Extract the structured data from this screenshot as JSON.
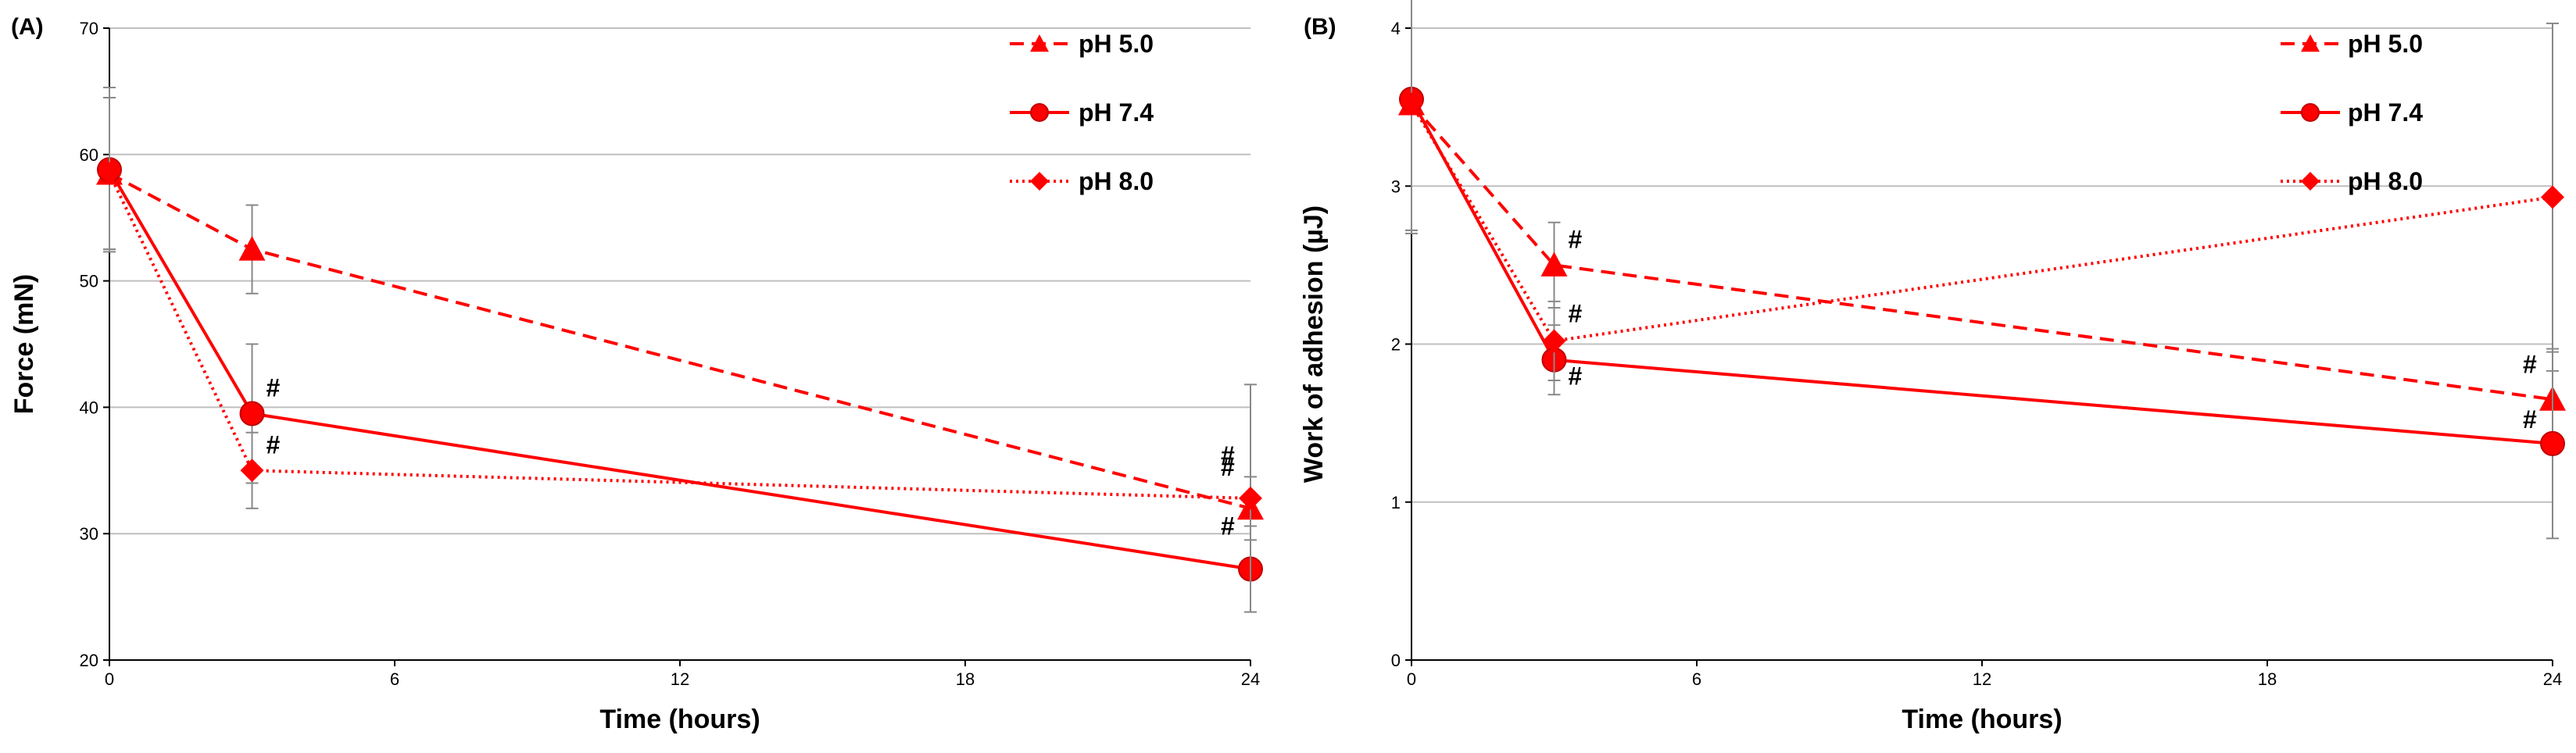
{
  "colors": {
    "series": "#ff0000",
    "grid": "#bfbfbf",
    "axis": "#000000",
    "errorbar": "#888888"
  },
  "chart_data": [
    {
      "type": "line",
      "panel_label": "(A)",
      "title": "",
      "xlabel": "Time (hours)",
      "ylabel": "Force (mN)",
      "xlim": [
        0,
        24
      ],
      "ylim": [
        20,
        70
      ],
      "xticks": [
        0,
        6,
        12,
        18,
        24
      ],
      "yticks": [
        20,
        30,
        40,
        50,
        60,
        70
      ],
      "grid": "horizontal",
      "legend_position": "top-right",
      "series": [
        {
          "name": "pH 5.0",
          "style": "dashed",
          "marker": "triangle",
          "x": [
            0,
            3,
            24
          ],
          "y": [
            58.5,
            52.5,
            32
          ],
          "err": [
            6,
            3.5,
            2.5
          ],
          "sig": [
            "",
            "",
            "#"
          ]
        },
        {
          "name": "pH 7.4",
          "style": "solid",
          "marker": "circle",
          "x": [
            0,
            3,
            24
          ],
          "y": [
            58.8,
            39.5,
            27.2
          ],
          "err": [
            6.5,
            5.5,
            3.4
          ],
          "sig": [
            "",
            "#",
            "#"
          ]
        },
        {
          "name": "pH 8.0",
          "style": "dotted",
          "marker": "diamond",
          "x": [
            0,
            3,
            24
          ],
          "y": [
            58.5,
            35,
            32.8
          ],
          "err": [
            6,
            3,
            9
          ],
          "sig": [
            "",
            "#",
            "#"
          ]
        }
      ]
    },
    {
      "type": "line",
      "panel_label": "(B)",
      "title": "",
      "xlabel": "Time (hours)",
      "ylabel": "Work of adhesion (µJ)",
      "xlim": [
        0,
        24
      ],
      "ylim": [
        0,
        4
      ],
      "xticks": [
        0,
        6,
        12,
        18,
        24
      ],
      "yticks": [
        0,
        1,
        2,
        3,
        4
      ],
      "grid": "horizontal",
      "legend_position": "top-right",
      "series": [
        {
          "name": "pH 5.0",
          "style": "dashed",
          "marker": "triangle",
          "x": [
            0,
            3,
            24
          ],
          "y": [
            3.52,
            2.5,
            1.65
          ],
          "err": [
            0.8,
            0.27,
            0.3
          ],
          "sig": [
            "",
            "#",
            "#"
          ]
        },
        {
          "name": "pH 7.4",
          "style": "solid",
          "marker": "circle",
          "x": [
            0,
            3,
            24
          ],
          "y": [
            3.55,
            1.9,
            1.37
          ],
          "err": [
            0.85,
            0.22,
            0.6
          ],
          "sig": [
            "",
            "#",
            "#"
          ]
        },
        {
          "name": "pH 8.0",
          "style": "dotted",
          "marker": "diamond",
          "x": [
            0,
            3,
            24
          ],
          "y": [
            3.52,
            2.02,
            2.93
          ],
          "err": [
            0.8,
            0.25,
            1.1
          ],
          "sig": [
            "",
            "#",
            ""
          ]
        }
      ]
    }
  ]
}
